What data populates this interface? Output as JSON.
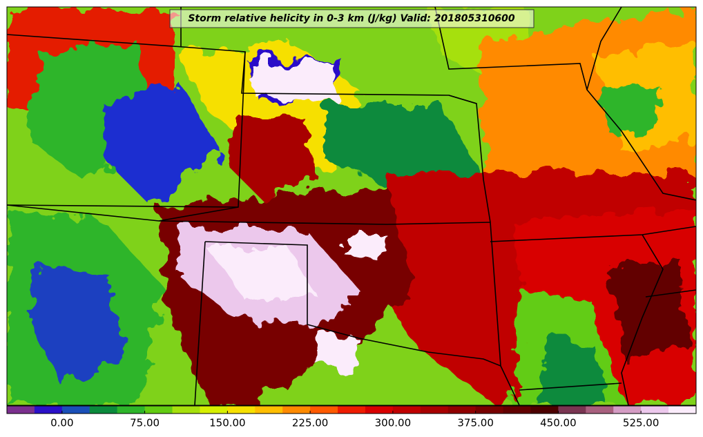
{
  "title": "Storm relative helicity in 0-3 km (J/kg) Valid: 201805310600",
  "colorbar": {
    "lim": [
      -50,
      575
    ],
    "colors": [
      "#7b2f8e",
      "#2a10c8",
      "#1a4fb8",
      "#0b8a3c",
      "#2db52a",
      "#62cc12",
      "#a6e00c",
      "#d6ef00",
      "#f6e000",
      "#ffbe00",
      "#ff8a00",
      "#ff5a00",
      "#ee1c00",
      "#d80000",
      "#c00000",
      "#a80000",
      "#900000",
      "#780000",
      "#620000",
      "#4c0000",
      "#7a3552",
      "#a8607e",
      "#d49cc4",
      "#ecc8ec",
      "#fbecfb"
    ],
    "ticks": [
      {
        "value": 0,
        "label": "0.00"
      },
      {
        "value": 75,
        "label": "75.00"
      },
      {
        "value": 150,
        "label": "150.00"
      },
      {
        "value": 225,
        "label": "225.00"
      },
      {
        "value": 300,
        "label": "300.00"
      },
      {
        "value": 375,
        "label": "375.00"
      },
      {
        "value": 450,
        "label": "450.00"
      },
      {
        "value": 525,
        "label": "525.00"
      }
    ]
  }
}
